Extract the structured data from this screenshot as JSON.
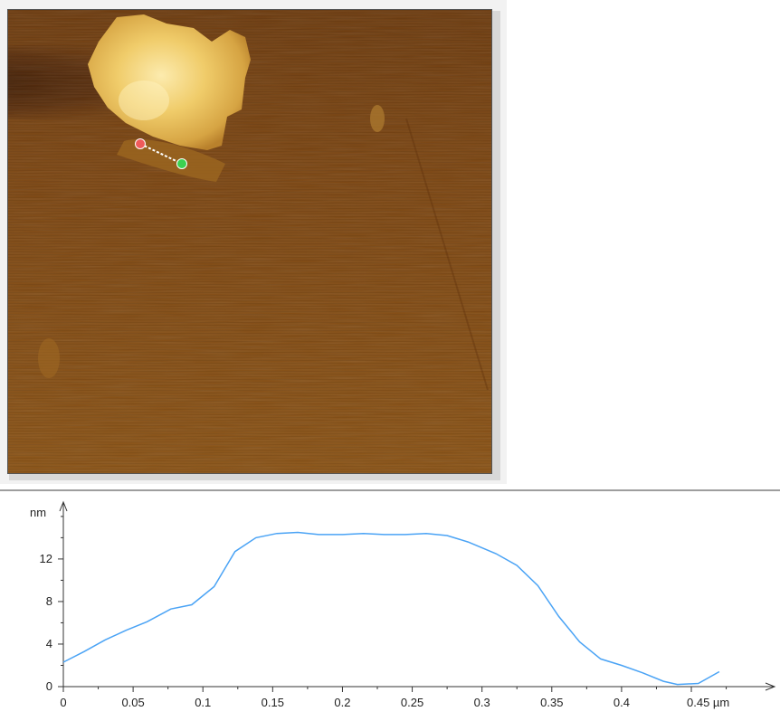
{
  "scan_image": {
    "colormap": [
      "#3a1a04",
      "#6b3a0e",
      "#8e5618",
      "#b5832e",
      "#e5c060",
      "#fbe7a0"
    ],
    "marker_start_color": "#ef5b5b",
    "marker_end_color": "#3bd150"
  },
  "chart_data": {
    "type": "line",
    "xlabel": "",
    "ylabel": "nm",
    "xunit": "µm",
    "xlim": [
      0,
      0.485
    ],
    "ylim": [
      0,
      16.5
    ],
    "xticks": [
      0,
      0.05,
      0.1,
      0.15,
      0.2,
      0.25,
      0.3,
      0.35,
      0.4,
      0.45
    ],
    "xtick_labels": [
      "0",
      "0.05",
      "0.1",
      "0.15",
      "0.2",
      "0.25",
      "0.3",
      "0.35",
      "0.4",
      "0.45 µm"
    ],
    "yticks": [
      0,
      4,
      8,
      12
    ],
    "ytick_labels": [
      "0",
      "4",
      "8",
      "12"
    ],
    "grid": false,
    "line_color": "#4aa3f5",
    "series": [
      {
        "x": [
          0,
          0.015,
          0.03,
          0.045,
          0.06,
          0.077,
          0.092,
          0.108,
          0.123,
          0.138,
          0.153,
          0.168,
          0.183,
          0.2,
          0.215,
          0.23,
          0.245,
          0.26,
          0.275,
          0.29,
          0.31,
          0.325,
          0.34,
          0.355,
          0.37,
          0.385,
          0.4,
          0.415,
          0.43,
          0.44,
          0.455,
          0.47
        ],
        "y": [
          2.3,
          3.3,
          4.4,
          5.3,
          6.1,
          7.3,
          7.7,
          9.4,
          12.7,
          14.0,
          14.4,
          14.5,
          14.3,
          14.3,
          14.4,
          14.3,
          14.3,
          14.4,
          14.2,
          13.6,
          12.5,
          11.4,
          9.5,
          6.6,
          4.2,
          2.6,
          2.0,
          1.3,
          0.5,
          0.2,
          0.3,
          1.4
        ]
      }
    ]
  }
}
